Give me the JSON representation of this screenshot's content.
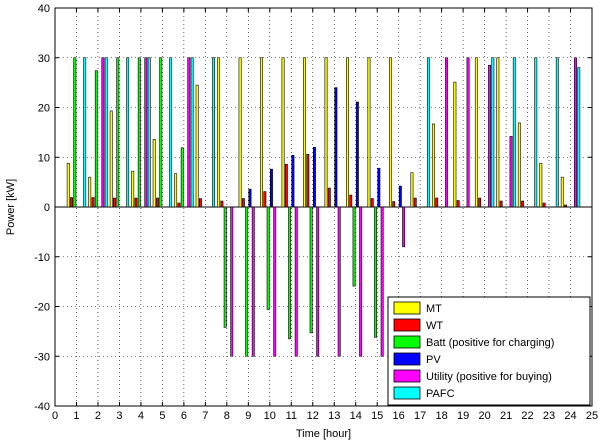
{
  "chart_data": {
    "type": "bar",
    "xlabel": "Time [hour]",
    "ylabel": "Power [kW]",
    "xlim": [
      0,
      25
    ],
    "ylim": [
      -40,
      40
    ],
    "xticks": [
      0,
      1,
      2,
      3,
      4,
      5,
      6,
      7,
      8,
      9,
      10,
      11,
      12,
      13,
      14,
      15,
      16,
      17,
      18,
      19,
      20,
      21,
      22,
      23,
      24,
      25
    ],
    "yticks": [
      -40,
      -30,
      -20,
      -10,
      0,
      10,
      20,
      30,
      40
    ],
    "grid": true,
    "legend_position": "bottom-right",
    "categories": [
      1,
      2,
      3,
      4,
      5,
      6,
      7,
      8,
      9,
      10,
      11,
      12,
      13,
      14,
      15,
      16,
      17,
      18,
      19,
      20,
      21,
      22,
      23,
      24
    ],
    "series": [
      {
        "name": "MT",
        "color": "#ffff00",
        "values": [
          8.8,
          6.0,
          19.3,
          7.2,
          13.6,
          6.7,
          24.5,
          30,
          30,
          30,
          30,
          30,
          30,
          30,
          30,
          30,
          6.9,
          16.7,
          25.1,
          30,
          30,
          16.9,
          8.8,
          6.0
        ]
      },
      {
        "name": "WT",
        "color": "#ff0000",
        "values": [
          1.9,
          1.9,
          1.8,
          1.8,
          1.8,
          0.8,
          1.7,
          1.2,
          1.7,
          3.1,
          8.6,
          10.6,
          3.8,
          2.4,
          1.7,
          1.1,
          1.8,
          1.8,
          1.3,
          1.8,
          1.2,
          1.2,
          0.8,
          0.4
        ]
      },
      {
        "name": "Batt (positive for charging)",
        "color": "#00ff00",
        "values": [
          30,
          27.4,
          30,
          30,
          30,
          11.9,
          0,
          -24.2,
          -30,
          -20.6,
          -26.5,
          -25.3,
          0,
          -15.9,
          -26.2,
          0,
          0,
          0,
          0,
          0,
          0,
          0,
          0,
          0
        ]
      },
      {
        "name": "PV",
        "color": "#0000ff",
        "values": [
          0,
          0,
          0,
          0,
          0,
          0,
          0,
          0,
          3.6,
          7.6,
          10.4,
          12.0,
          24.0,
          21.1,
          7.8,
          4.2,
          0,
          0,
          0,
          0,
          0,
          0,
          0,
          0
        ]
      },
      {
        "name": "Utility (positive for buying)",
        "color": "#ff00ff",
        "values": [
          0,
          30,
          0,
          30,
          0,
          30,
          0,
          -30,
          -30,
          -30,
          -30,
          -30,
          -30,
          -30,
          -30,
          -8.0,
          0,
          30,
          30,
          28.5,
          14.2,
          0,
          0,
          30
        ]
      },
      {
        "name": "PAFC",
        "color": "#00ffff",
        "values": [
          30,
          30,
          30,
          30,
          30,
          30,
          30,
          0,
          0,
          0,
          0,
          0,
          0,
          0,
          0,
          0,
          30,
          0,
          0,
          30,
          30,
          30,
          30,
          28.0
        ]
      }
    ]
  }
}
